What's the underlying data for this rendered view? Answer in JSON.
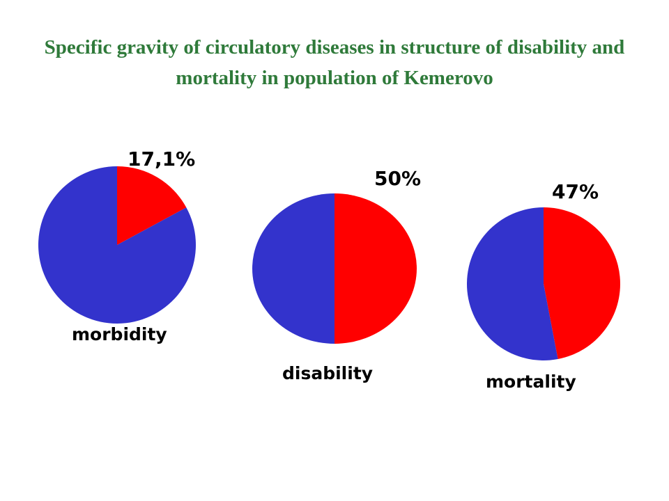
{
  "title": "Specific gravity of circulatory diseases in structure of disability and mortality in population of Kemerovo",
  "colors": {
    "title": "#2f7a3a",
    "highlight": "#ff0000",
    "remainder": "#3333cc"
  },
  "chart_data": [
    {
      "type": "pie",
      "title": "",
      "category": "morbidity",
      "percent_label": "17,1%",
      "slices": [
        {
          "name": "",
          "value": 17.1,
          "color": "#ff0000"
        },
        {
          "name": "",
          "value": 82.9,
          "color": "#3333cc"
        }
      ]
    },
    {
      "type": "pie",
      "title": "",
      "category": "disability",
      "percent_label": "50%",
      "slices": [
        {
          "name": "",
          "value": 50,
          "color": "#ff0000"
        },
        {
          "name": "",
          "value": 50,
          "color": "#3333cc"
        }
      ]
    },
    {
      "type": "pie",
      "title": "",
      "category": "mortality",
      "percent_label": "47%",
      "slices": [
        {
          "name": "",
          "value": 47,
          "color": "#ff0000"
        },
        {
          "name": "",
          "value": 53,
          "color": "#3333cc"
        }
      ]
    }
  ]
}
